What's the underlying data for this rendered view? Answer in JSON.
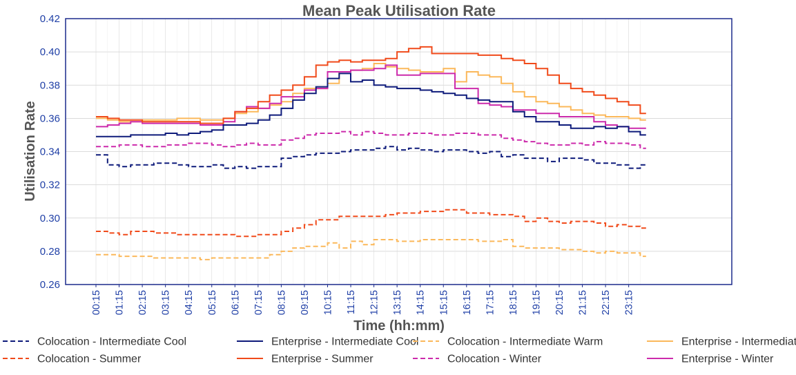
{
  "chart_data": {
    "type": "line",
    "step": true,
    "title": "Mean Peak Utilisation Rate",
    "xlabel": "Time (hh:mm)",
    "ylabel": "Utilisation Rate",
    "ylim": [
      0.26,
      0.42
    ],
    "yticks": [
      "0.26",
      "0.28",
      "0.30",
      "0.32",
      "0.34",
      "0.36",
      "0.38",
      "0.40",
      "0.42"
    ],
    "xticks": [
      "00:15",
      "01:15",
      "02:15",
      "03:15",
      "04:15",
      "05:15",
      "06:15",
      "07:15",
      "08:15",
      "09:15",
      "10:15",
      "11:15",
      "12:15",
      "13:15",
      "14:15",
      "15:15",
      "16:15",
      "17:15",
      "18:15",
      "19:15",
      "20:15",
      "21:15",
      "22:15",
      "23:15"
    ],
    "x_range_hours": [
      0.25,
      24.0
    ],
    "legend_position": "bottom",
    "series": [
      {
        "name": "Colocation - Intermediate Cool",
        "color": "#0d1a7a",
        "dash": "dashed",
        "values": [
          0.338,
          0.332,
          0.331,
          0.332,
          0.332,
          0.333,
          0.333,
          0.332,
          0.331,
          0.331,
          0.332,
          0.33,
          0.331,
          0.33,
          0.331,
          0.331,
          0.336,
          0.337,
          0.338,
          0.339,
          0.339,
          0.34,
          0.341,
          0.341,
          0.342,
          0.343,
          0.341,
          0.342,
          0.341,
          0.34,
          0.341,
          0.341,
          0.34,
          0.339,
          0.34,
          0.337,
          0.338,
          0.336,
          0.336,
          0.334,
          0.336,
          0.336,
          0.335,
          0.333,
          0.333,
          0.332,
          0.33,
          0.332
        ]
      },
      {
        "name": "Colocation - Summer",
        "color": "#f04a1a",
        "dash": "dashed",
        "values": [
          0.292,
          0.291,
          0.29,
          0.292,
          0.292,
          0.291,
          0.291,
          0.29,
          0.29,
          0.29,
          0.29,
          0.29,
          0.289,
          0.289,
          0.29,
          0.29,
          0.292,
          0.294,
          0.296,
          0.299,
          0.299,
          0.301,
          0.301,
          0.301,
          0.301,
          0.302,
          0.303,
          0.303,
          0.304,
          0.304,
          0.305,
          0.305,
          0.303,
          0.303,
          0.302,
          0.302,
          0.301,
          0.298,
          0.3,
          0.298,
          0.297,
          0.298,
          0.298,
          0.297,
          0.295,
          0.296,
          0.295,
          0.294
        ]
      },
      {
        "name": "Enterprise - Intermediate Cool",
        "color": "#0d1a7a",
        "dash": "solid",
        "values": [
          0.349,
          0.349,
          0.349,
          0.35,
          0.35,
          0.35,
          0.351,
          0.35,
          0.351,
          0.352,
          0.353,
          0.356,
          0.356,
          0.357,
          0.359,
          0.362,
          0.366,
          0.371,
          0.375,
          0.379,
          0.384,
          0.387,
          0.382,
          0.383,
          0.38,
          0.379,
          0.378,
          0.378,
          0.377,
          0.376,
          0.375,
          0.374,
          0.372,
          0.371,
          0.37,
          0.37,
          0.364,
          0.361,
          0.358,
          0.358,
          0.356,
          0.354,
          0.354,
          0.355,
          0.354,
          0.355,
          0.352,
          0.35
        ]
      },
      {
        "name": "Enterprise - Summer",
        "color": "#f04a1a",
        "dash": "solid",
        "values": [
          0.361,
          0.36,
          0.359,
          0.359,
          0.358,
          0.358,
          0.358,
          0.358,
          0.358,
          0.357,
          0.357,
          0.36,
          0.364,
          0.366,
          0.37,
          0.374,
          0.377,
          0.38,
          0.385,
          0.392,
          0.394,
          0.395,
          0.394,
          0.395,
          0.395,
          0.396,
          0.4,
          0.402,
          0.403,
          0.399,
          0.399,
          0.399,
          0.399,
          0.398,
          0.398,
          0.396,
          0.395,
          0.393,
          0.39,
          0.386,
          0.381,
          0.378,
          0.376,
          0.374,
          0.372,
          0.37,
          0.368,
          0.363
        ]
      },
      {
        "name": "Colocation - Intermediate Warm",
        "color": "#fbb85a",
        "dash": "dashed",
        "values": [
          0.278,
          0.278,
          0.277,
          0.277,
          0.277,
          0.276,
          0.276,
          0.276,
          0.276,
          0.275,
          0.276,
          0.276,
          0.276,
          0.276,
          0.276,
          0.278,
          0.28,
          0.282,
          0.283,
          0.283,
          0.285,
          0.282,
          0.286,
          0.284,
          0.287,
          0.287,
          0.286,
          0.286,
          0.287,
          0.287,
          0.287,
          0.287,
          0.287,
          0.286,
          0.286,
          0.287,
          0.283,
          0.282,
          0.282,
          0.282,
          0.281,
          0.281,
          0.28,
          0.279,
          0.28,
          0.279,
          0.279,
          0.277
        ]
      },
      {
        "name": "Colocation - Winter",
        "color": "#cc2aab",
        "dash": "dashed",
        "values": [
          0.343,
          0.343,
          0.344,
          0.344,
          0.343,
          0.343,
          0.344,
          0.344,
          0.345,
          0.345,
          0.344,
          0.343,
          0.344,
          0.345,
          0.344,
          0.344,
          0.347,
          0.348,
          0.35,
          0.351,
          0.351,
          0.352,
          0.35,
          0.352,
          0.351,
          0.35,
          0.35,
          0.351,
          0.351,
          0.35,
          0.35,
          0.351,
          0.351,
          0.35,
          0.35,
          0.348,
          0.347,
          0.346,
          0.345,
          0.344,
          0.344,
          0.345,
          0.344,
          0.346,
          0.345,
          0.345,
          0.344,
          0.342
        ]
      },
      {
        "name": "Enterprise - Intermediate Warm",
        "color": "#fbb85a",
        "dash": "solid",
        "values": [
          0.36,
          0.359,
          0.358,
          0.358,
          0.359,
          0.359,
          0.359,
          0.36,
          0.36,
          0.359,
          0.359,
          0.36,
          0.363,
          0.364,
          0.366,
          0.368,
          0.37,
          0.375,
          0.378,
          0.378,
          0.381,
          0.388,
          0.389,
          0.39,
          0.393,
          0.391,
          0.39,
          0.389,
          0.388,
          0.388,
          0.39,
          0.382,
          0.388,
          0.386,
          0.385,
          0.381,
          0.376,
          0.373,
          0.37,
          0.369,
          0.367,
          0.365,
          0.363,
          0.362,
          0.361,
          0.361,
          0.36,
          0.359
        ]
      },
      {
        "name": "Enterprise - Winter",
        "color": "#cc2aab",
        "dash": "solid",
        "values": [
          0.355,
          0.356,
          0.357,
          0.358,
          0.357,
          0.357,
          0.357,
          0.357,
          0.357,
          0.356,
          0.356,
          0.358,
          0.364,
          0.367,
          0.366,
          0.369,
          0.373,
          0.373,
          0.377,
          0.378,
          0.388,
          0.388,
          0.389,
          0.389,
          0.39,
          0.392,
          0.386,
          0.386,
          0.387,
          0.387,
          0.387,
          0.378,
          0.378,
          0.369,
          0.368,
          0.367,
          0.365,
          0.365,
          0.363,
          0.363,
          0.361,
          0.361,
          0.361,
          0.358,
          0.356,
          0.355,
          0.354,
          0.354
        ]
      }
    ]
  }
}
